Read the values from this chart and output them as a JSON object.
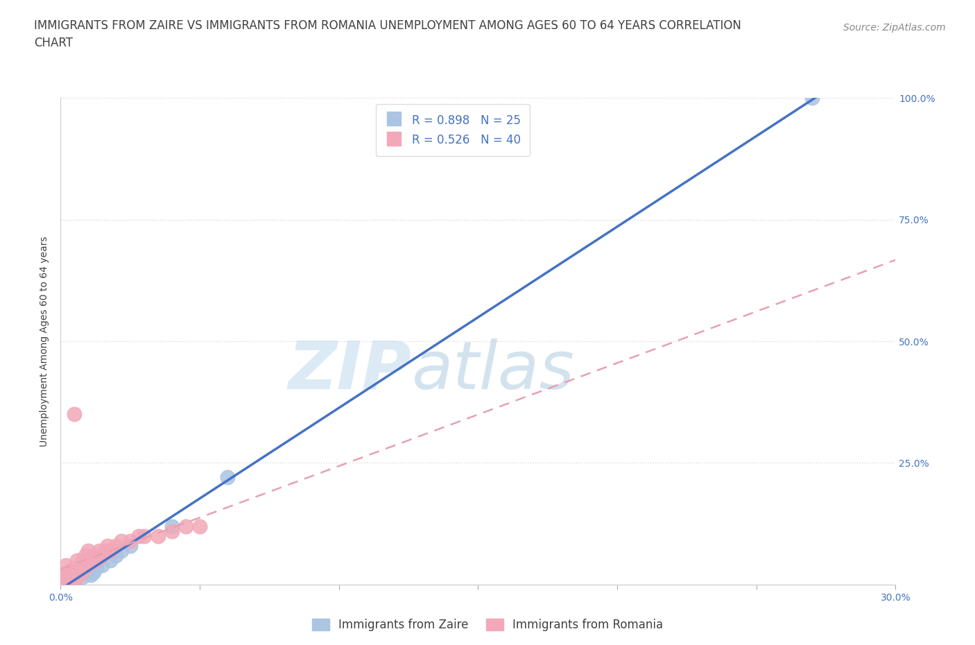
{
  "title": "IMMIGRANTS FROM ZAIRE VS IMMIGRANTS FROM ROMANIA UNEMPLOYMENT AMONG AGES 60 TO 64 YEARS CORRELATION\nCHART",
  "source_text": "Source: ZipAtlas.com",
  "ylabel": "Unemployment Among Ages 60 to 64 years",
  "watermark_part1": "ZIP",
  "watermark_part2": "atlas",
  "xlim": [
    0.0,
    0.3
  ],
  "ylim": [
    0.0,
    1.0
  ],
  "xticks": [
    0.0,
    0.05,
    0.1,
    0.15,
    0.2,
    0.25,
    0.3
  ],
  "xticklabels": [
    "0.0%",
    "",
    "",
    "",
    "",
    "",
    "30.0%"
  ],
  "yticks": [
    0.0,
    0.25,
    0.5,
    0.75,
    1.0
  ],
  "yticklabels": [
    "",
    "25.0%",
    "50.0%",
    "75.0%",
    "100.0%"
  ],
  "zaire_R": 0.898,
  "zaire_N": 25,
  "romania_R": 0.526,
  "romania_N": 40,
  "zaire_color": "#aac4e2",
  "romania_color": "#f2a8b8",
  "zaire_line_color": "#4472c4",
  "romania_line_color": "#e8a0b0",
  "zaire_x": [
    0.001,
    0.001,
    0.002,
    0.002,
    0.003,
    0.004,
    0.004,
    0.005,
    0.005,
    0.006,
    0.007,
    0.008,
    0.009,
    0.01,
    0.011,
    0.012,
    0.013,
    0.015,
    0.018,
    0.02,
    0.022,
    0.025,
    0.04,
    0.06,
    0.27
  ],
  "zaire_y": [
    0.0,
    0.005,
    0.002,
    0.01,
    0.005,
    0.01,
    0.02,
    0.005,
    0.01,
    0.015,
    0.02,
    0.015,
    0.025,
    0.03,
    0.02,
    0.025,
    0.035,
    0.04,
    0.05,
    0.06,
    0.07,
    0.08,
    0.12,
    0.22,
    1.0
  ],
  "romania_x": [
    0.0,
    0.001,
    0.001,
    0.002,
    0.002,
    0.002,
    0.003,
    0.003,
    0.004,
    0.004,
    0.005,
    0.005,
    0.005,
    0.006,
    0.006,
    0.007,
    0.007,
    0.008,
    0.008,
    0.009,
    0.009,
    0.01,
    0.01,
    0.011,
    0.012,
    0.013,
    0.014,
    0.015,
    0.016,
    0.017,
    0.018,
    0.02,
    0.022,
    0.025,
    0.028,
    0.03,
    0.035,
    0.04,
    0.045,
    0.05
  ],
  "romania_y": [
    0.0,
    0.005,
    0.02,
    0.005,
    0.01,
    0.04,
    0.01,
    0.02,
    0.01,
    0.03,
    0.005,
    0.02,
    0.35,
    0.03,
    0.05,
    0.02,
    0.04,
    0.03,
    0.05,
    0.04,
    0.06,
    0.04,
    0.07,
    0.05,
    0.06,
    0.05,
    0.07,
    0.06,
    0.07,
    0.08,
    0.07,
    0.08,
    0.09,
    0.09,
    0.1,
    0.1,
    0.1,
    0.11,
    0.12,
    0.12
  ],
  "legend_label_zaire": "Immigrants from Zaire",
  "legend_label_romania": "Immigrants from Romania",
  "title_fontsize": 12,
  "axis_label_fontsize": 10,
  "tick_fontsize": 10,
  "legend_fontsize": 12,
  "source_fontsize": 10,
  "background_color": "#ffffff",
  "grid_color": "#d8d8d8",
  "tick_color": "#4472c4",
  "title_color": "#404040",
  "label_color": "#404040"
}
